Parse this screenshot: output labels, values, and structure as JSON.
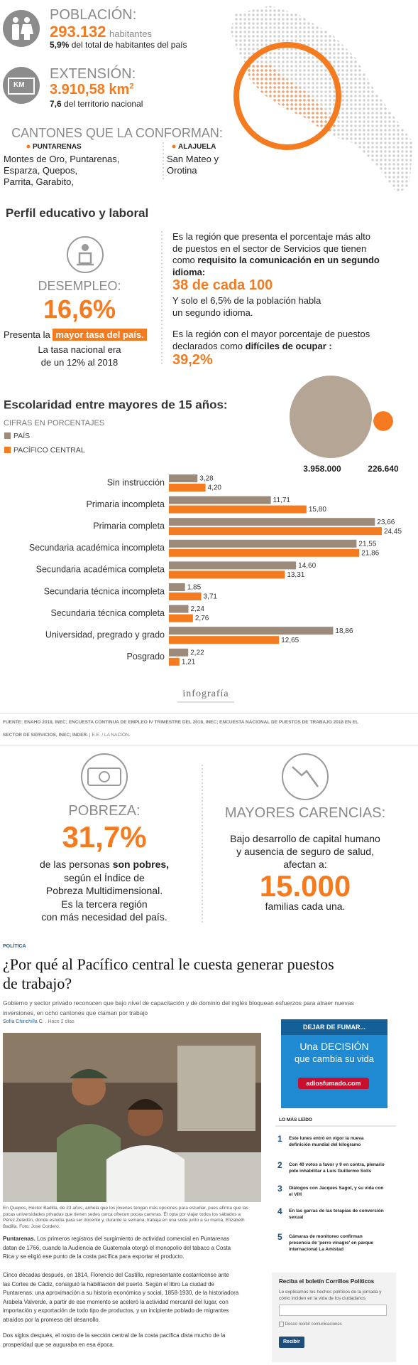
{
  "poblacion": {
    "label": "POBLACIÓN:",
    "value": "293.132",
    "unit": "habitantes",
    "share": "5,9%",
    "share_text": "del total de habitantes del país"
  },
  "extension": {
    "icon": "KM",
    "label": "EXTENSIÓN:",
    "value": "3.910,58 km",
    "sup": "2",
    "share": "7,6",
    "share_text": "del territorio nacional"
  },
  "cantones": {
    "heading": "CANTONES QUE LA CONFORMAN:",
    "provinces": [
      {
        "name": "PUNTARENAS",
        "lines": [
          "Montes de Oro, Puntarenas,",
          "Esparza, Quepos,",
          "Parrita, Garabito,"
        ]
      },
      {
        "name": "ALAJUELA",
        "lines": [
          "San Mateo y",
          "Orotina"
        ]
      }
    ]
  },
  "perfil": {
    "title": "Perfil educativo y laboral",
    "left": {
      "label": "DESEMPLEO:",
      "value": "16,6%",
      "line1": [
        "Presenta la ",
        "mayor tasa del país."
      ],
      "lines": [
        "La tasa nacional era",
        "de un 12% al 2018"
      ]
    },
    "right": {
      "p1": [
        "Es la región que presenta el porcentaje más alto",
        "de puestos en el sector de Servicios que tienen",
        [
          "como ",
          "requisito la comunicación en un segundo"
        ],
        "idioma:"
      ],
      "value1": "38 de cada 100",
      "p2": [
        "Y solo el 6,5% de la población habla",
        "un segundo idioma."
      ],
      "p3": [
        "Es la región con el mayor porcentaje de puestos",
        [
          "declarados como ",
          "difíciles de ocupar :"
        ]
      ],
      "value2": "39,2%"
    }
  },
  "chart_data": [
    {
      "type": "bar",
      "orientation": "horizontal",
      "title": "Escolaridad entre mayores de 15 años:",
      "subtitle": "CIFRAS EN PORCENTAJES",
      "categories": [
        "Sin instrucción",
        "Primaria incompleta",
        "Primaria completa",
        "Secundaria académica incompleta",
        "Secundaria académica completa",
        "Secundaria técnica incompleta",
        "Secundaria técnica completa",
        "Universidad, pregrado y grado",
        "Posgrado"
      ],
      "series": [
        {
          "name": "PAÍS",
          "color": "#9c8b7b",
          "values": [
            3.28,
            11.71,
            23.66,
            21.55,
            14.6,
            1.85,
            2.24,
            18.86,
            2.22
          ],
          "value_labels": [
            "3,28",
            "11,71",
            "23,66",
            "21,55",
            "14,60",
            "1,85",
            "2,24",
            "18,86",
            "2,22"
          ]
        },
        {
          "name": "PACÍFICO CENTRAL",
          "color": "#f47b20",
          "values": [
            4.2,
            15.8,
            24.45,
            21.86,
            13.31,
            3.71,
            2.76,
            12.65,
            1.21
          ],
          "value_labels": [
            "4,20",
            "15,80",
            "24,45",
            "21,86",
            "13,31",
            "3,71",
            "2,76",
            "12,65",
            "1,21"
          ]
        }
      ]
    },
    {
      "type": "bubble",
      "values": [
        3958000,
        226640
      ],
      "value_labels": [
        "3.958.000",
        "226.640"
      ],
      "colors": [
        "#b5a594",
        "#f47b20"
      ]
    }
  ],
  "brand": "infografía",
  "source": {
    "line1": "FUENTE: ENAHO 2018, INEC; ENCUESTA CONTINUA DE EMPLEO IV TRIMESTRE DEL 2018, INEC; ENCUESTA NACIONAL DE PUESTOS DE TRABAJO 2018 EN EL",
    "line2": "SECTOR DE SERVICIOS, INEC; INDER.",
    "credit": "| E.E. / LA NACIÓN."
  },
  "pobreza": {
    "label": "POBREZA:",
    "value": "31,7%",
    "lines": [
      [
        "de las personas ",
        "son pobres,"
      ],
      "según el Índice de",
      "Pobreza Multidimensional.",
      "Es la tercera región",
      "con más necesidad del país."
    ]
  },
  "carencias": {
    "label": "MAYORES CARENCIAS:",
    "lines": [
      "Bajo desarrollo de capital humano",
      "y ausencia de seguro de salud,",
      "afectan a:"
    ],
    "value": "15.000",
    "after": "familias cada una."
  },
  "article": {
    "section": "POLÍTICA",
    "headline": [
      "¿Por qué al Pacífico central le cuesta generar puestos",
      "de trabajo?"
    ],
    "summary": [
      "Gobierno y sector privado reconocen que bajo nivel de capacitación y de dominio del inglés bloquean esfuerzos para atraer nuevas",
      "inversiones, en ocho cantones que claman por trabajo"
    ],
    "author": "Sofía Chinchilla C.",
    "time": "Hace 2 días",
    "caption": [
      "En Quepos, Héctor Badilla, de 23 años, anhela que los jóvenes tengan más opciones para estudiar, pues afirma que las",
      "pocas universidades privadas que tienen sedes cerca ofrecen pocas carreras. Él opta por viajar todos los sábados a",
      "Pérez Zeledón, donde estudia para ser docente y, durante la semana, trabaja en una soda junto a su mamá, Elizabeth",
      "Badilla. Foto: José Cordero."
    ],
    "p1": [
      [
        "Puntarenas.",
        " Los primeros registros del surgimiento de actividad comercial en Puntarenas"
      ],
      "datan de 1766, cuando la Audiencia de Guatemala otorgó el monopolio del tabaco a Costa",
      "Rica y se eligió ese punto de la costa pacífica para exportar el producto."
    ],
    "p2": [
      "Cinco décadas después, en 1814, Florencio del Castillo, representante costarricense ante",
      "las Cortes de Cádiz, consiguió la habilitación del puerto. Según el libro La ciudad de",
      "Puntarenas: una aproximación a su historia económica y social, 1858-1930, de la historiadora",
      "Arabela Valverde, a partir de ese momento se aceleró la actividad mercantil del lugar, con",
      "importación y exportación de todo tipo de productos, y un incipiente poblado de migrantes",
      "atraídos por la promesa del desarrollo."
    ],
    "p3": [
      "Dos siglos después, el rostro de la sección central de la costa pacífica dista mucho de la",
      "prosperidad que se auguraba en esa época."
    ]
  },
  "ad": {
    "top": "DEJAR DE FUMAR...",
    "line1": "Una DECISIÓN",
    "line2": "que cambia su vida",
    "url": "adiosfumado.com"
  },
  "most_read": {
    "title": "LO MÁS LEÍDO",
    "items": [
      {
        "n": "1",
        "lines": [
          "Este lunes entró en vigor la nueva",
          "definición mundial del kilogramo"
        ]
      },
      {
        "n": "2",
        "lines": [
          "Con 40 votos a favor y 9 en contra, plenario",
          "pide inhabilitar a Luis Guillermo Solís"
        ]
      },
      {
        "n": "3",
        "lines": [
          "Diálogos con Jacques Sagot, y su vida con",
          "el VIH"
        ]
      },
      {
        "n": "4",
        "lines": [
          "En las garras de las terapias de conversión",
          "sexual"
        ]
      },
      {
        "n": "5",
        "lines": [
          "Cámaras de monitoreo confirman",
          "presencia de 'perro vinagre' en parque",
          "internacional La Amistad"
        ]
      }
    ]
  },
  "newsletter": {
    "title": "Reciba el boletín Corrillos Políticos",
    "text": [
      "Le explicamos los hechos políticos de la jornada y",
      "cómo inciden en la vida de los ciudadanos"
    ],
    "consent": "Deseo recibir comunicaciones",
    "button": "Recibir"
  }
}
